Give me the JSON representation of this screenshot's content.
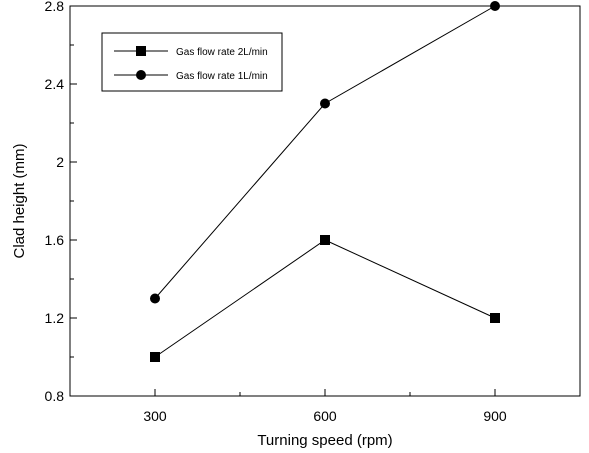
{
  "chart_data": {
    "type": "line",
    "xlabel": "Turning speed (rpm)",
    "ylabel": "Clad height (mm)",
    "x": [
      300,
      600,
      900
    ],
    "xlim": [
      150,
      1050
    ],
    "ylim": [
      0.8,
      2.8
    ],
    "x_ticks": [
      "300",
      "600",
      "900"
    ],
    "y_ticks": [
      "0.8",
      "1.2",
      "1.6",
      "2",
      "2.4",
      "2.8"
    ],
    "legend_position": "top-left",
    "grid": false,
    "series": [
      {
        "name": "Gas flow rate 2L/min",
        "marker": "square",
        "color": "#000000",
        "values": [
          1.0,
          1.6,
          1.2
        ]
      },
      {
        "name": "Gas flow rate 1L/min",
        "marker": "circle",
        "color": "#000000",
        "values": [
          1.3,
          2.3,
          2.8
        ]
      }
    ]
  }
}
